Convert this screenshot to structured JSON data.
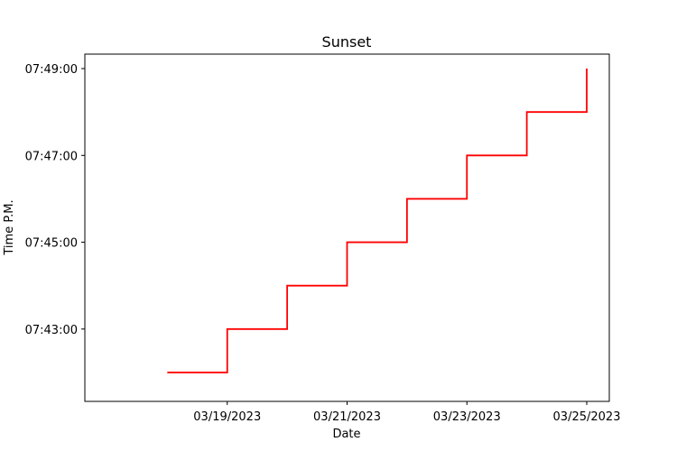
{
  "chart_data": {
    "type": "line",
    "drawstyle": "steps-post",
    "title": "Sunset",
    "xlabel": "Date",
    "ylabel": "Time P.M.",
    "x_ticks": [
      "03/19/2023",
      "03/21/2023",
      "03/23/2023",
      "03/25/2023"
    ],
    "y_ticks": [
      "07:43:00",
      "07:45:00",
      "07:47:00",
      "07:49:00"
    ],
    "series": [
      {
        "color": "#ff0000",
        "x": [
          "03/18/2023",
          "03/19/2023",
          "03/20/2023",
          "03/21/2023",
          "03/22/2023",
          "03/23/2023",
          "03/24/2023",
          "03/25/2023"
        ],
        "y": [
          "07:42:00",
          "07:43:00",
          "07:44:00",
          "07:45:00",
          "07:46:00",
          "07:47:00",
          "07:48:00",
          "07:49:00"
        ]
      }
    ],
    "xlim": [
      "03/17/2023",
      "03/25/2023"
    ],
    "ylim": [
      "07:41:20",
      "07:49:20"
    ],
    "grid": false
  }
}
